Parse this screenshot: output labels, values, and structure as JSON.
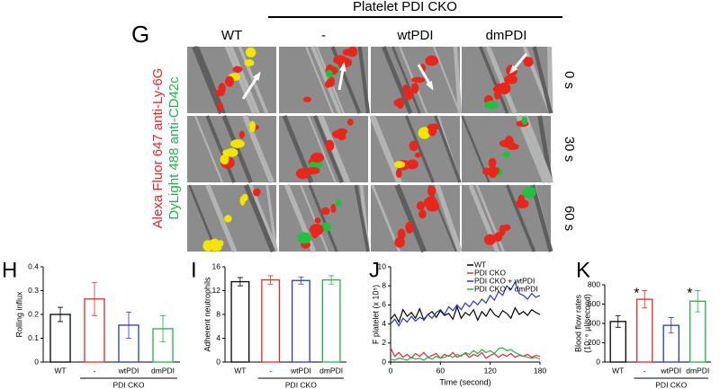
{
  "panel_g": {
    "label": "G",
    "group_header": "Platelet PDI CKO",
    "columns": [
      "WT",
      "-",
      "wtPDI",
      "dmPDI"
    ],
    "rows": [
      "0 s",
      "30 s",
      "60 s"
    ],
    "stain_labels": [
      "Alexa Fluor 647 anti-Ly-6G",
      "DyLight 488 anti-CD42c"
    ]
  },
  "chart_data": [
    {
      "label": "H",
      "type": "bar",
      "ylabel": "Rolling influx",
      "categories": [
        "WT",
        "-",
        "wtPDI",
        "dmPDI"
      ],
      "group_label": "PDI CKO",
      "values": [
        0.2,
        0.265,
        0.155,
        0.14
      ],
      "errors": [
        0.03,
        0.07,
        0.055,
        0.055
      ],
      "colors": [
        "#000000",
        "#e8262b",
        "#2a35c8",
        "#22b04b"
      ],
      "ylim": [
        0,
        0.4
      ],
      "yticks": [
        0,
        0.1,
        0.2,
        0.3,
        0.4
      ]
    },
    {
      "label": "I",
      "type": "bar",
      "ylabel": "Adherent neutrophils",
      "categories": [
        "WT",
        "-",
        "wtPDI",
        "dmPDI"
      ],
      "group_label": "PDI CKO",
      "values": [
        13.5,
        13.8,
        13.7,
        13.8
      ],
      "errors": [
        0.7,
        0.7,
        0.6,
        0.7
      ],
      "colors": [
        "#000000",
        "#e8262b",
        "#2a35c8",
        "#22b04b"
      ],
      "ylim": [
        0,
        16
      ],
      "yticks": [
        0,
        4,
        8,
        12,
        16
      ]
    },
    {
      "label": "J",
      "type": "line",
      "ylabel": "F platelet (x 10⁵)",
      "xlabel": "Time (second)",
      "x": [
        0,
        5,
        10,
        15,
        20,
        25,
        30,
        35,
        40,
        45,
        50,
        55,
        60,
        65,
        70,
        75,
        80,
        85,
        90,
        95,
        100,
        105,
        110,
        115,
        120,
        125,
        130,
        135,
        140,
        145,
        150,
        155,
        160,
        165,
        170,
        175,
        180
      ],
      "series": [
        {
          "name": "WT",
          "color": "#000000",
          "values": [
            4.5,
            5,
            4.2,
            5.5,
            4.8,
            5.2,
            4.6,
            5.6,
            4.4,
            5,
            5.3,
            4.7,
            5.4,
            4.9,
            5.1,
            4.5,
            5.8,
            4.6,
            5.2,
            4.9,
            5.5,
            4.4,
            5.3,
            4.8,
            5.6,
            5,
            4.7,
            5.4,
            5.1,
            4.6,
            5.7,
            5,
            5.3,
            4.9,
            5.5,
            5.2,
            5
          ]
        },
        {
          "name": "PDI CKO",
          "color": "#e8262b",
          "values": [
            1.5,
            0.6,
            1,
            0.5,
            0.8,
            0.4,
            0.9,
            0.6,
            1,
            0.5,
            0.7,
            0.9,
            0.4,
            0.8,
            0.6,
            1,
            0.5,
            0.7,
            0.9,
            0.5,
            0.8,
            0.6,
            1,
            0.4,
            0.7,
            0.9,
            0.5,
            0.8,
            0.6,
            0.9,
            0.5,
            0.7,
            0.6,
            0.8,
            0.5,
            0.7,
            0.6
          ]
        },
        {
          "name": "PDI CKO + wtPDI",
          "color": "#2a35c8",
          "values": [
            4,
            4.5,
            3.8,
            4.6,
            4.2,
            4.8,
            4.3,
            4.7,
            4.5,
            5,
            4.6,
            5.2,
            5.5,
            5,
            5.8,
            5.4,
            6,
            5.5,
            6.2,
            5.8,
            6.4,
            6,
            6.6,
            6.2,
            7,
            6.5,
            7.4,
            7,
            8,
            7.6,
            8.4,
            7.2,
            7,
            6.6,
            7.2,
            6.8,
            7
          ]
        },
        {
          "name": "PDI CKO + dmPDI",
          "color": "#22b04b",
          "values": [
            0.3,
            0.2,
            0.4,
            0.3,
            0.2,
            0.5,
            0.3,
            0.4,
            0.2,
            0.5,
            0.3,
            0.6,
            0.4,
            0.5,
            0.7,
            0.5,
            0.8,
            0.6,
            1,
            0.8,
            1.2,
            0.9,
            1.3,
            1,
            1.2,
            0.9,
            1.4,
            1.5,
            1.2,
            1.3,
            1,
            0.8,
            0.6,
            0.5,
            0.4,
            0.5,
            0.3
          ]
        }
      ],
      "xlim": [
        0,
        180
      ],
      "xticks": [
        0,
        60,
        120,
        180
      ],
      "ylim": [
        0,
        10
      ],
      "yticks": [
        0,
        2,
        4,
        6,
        8,
        10
      ]
    },
    {
      "label": "K",
      "type": "bar",
      "ylabel": [
        "Blood flow rates",
        "(10⁻⁶ µl/second)"
      ],
      "categories": [
        "WT",
        "-",
        "wtPDI",
        "dmPDI"
      ],
      "group_label": "PDI CKO",
      "values": [
        420,
        650,
        380,
        630
      ],
      "errors": [
        60,
        90,
        80,
        110
      ],
      "colors": [
        "#000000",
        "#e8262b",
        "#2a35c8",
        "#22b04b"
      ],
      "annotations": [
        {
          "text": "*",
          "category": "-"
        },
        {
          "text": "*",
          "category": "dmPDI"
        }
      ],
      "ylim": [
        0,
        800
      ],
      "yticks": [
        0,
        200,
        400,
        600,
        800
      ]
    }
  ]
}
